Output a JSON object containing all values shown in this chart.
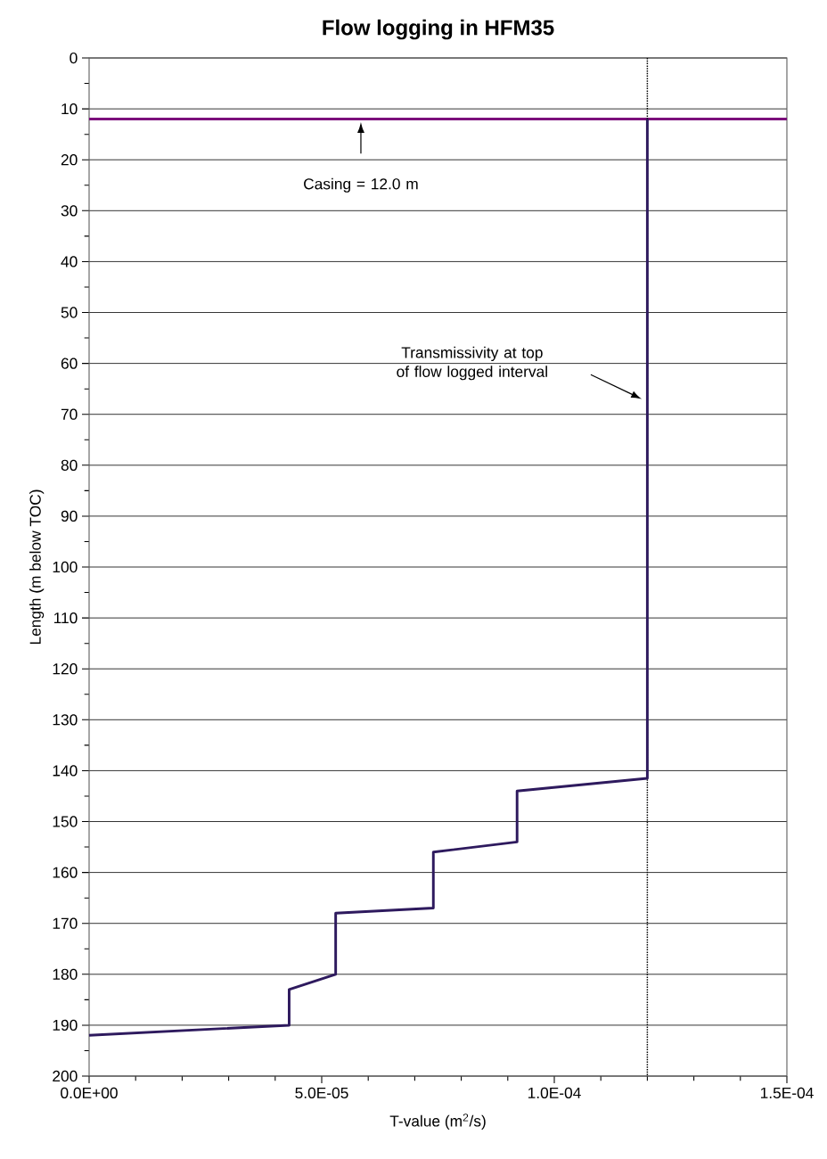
{
  "chart_data": {
    "type": "line",
    "title": "Flow logging in HFM35",
    "xlabel": "T-value (m$^{2}$/s)",
    "ylabel": "Length (m below TOC)",
    "xlim": [
      0,
      0.00015
    ],
    "xticks": [
      {
        "value": 0,
        "label": "0.0E+00"
      },
      {
        "value": 1e-05,
        "label": null
      },
      {
        "value": 2e-05,
        "label": null
      },
      {
        "value": 3e-05,
        "label": null
      },
      {
        "value": 4e-05,
        "label": null
      },
      {
        "value": 5e-05,
        "label": "5.0E-05"
      },
      {
        "value": 6e-05,
        "label": null
      },
      {
        "value": 7e-05,
        "label": null
      },
      {
        "value": 8e-05,
        "label": null
      },
      {
        "value": 9e-05,
        "label": null
      },
      {
        "value": 0.0001,
        "label": "1.0E-04"
      },
      {
        "value": 0.00011,
        "label": null
      },
      {
        "value": 0.00012,
        "label": null
      },
      {
        "value": 0.00013,
        "label": null
      },
      {
        "value": 0.00014,
        "label": null
      },
      {
        "value": 0.00015,
        "label": "1.5E-04"
      }
    ],
    "ylim": [
      200,
      0
    ],
    "yticks": [
      0,
      {
        "value": 5,
        "label": null
      },
      10,
      {
        "value": 15,
        "label": null
      },
      20,
      {
        "value": 25,
        "label": null
      },
      30,
      {
        "value": 35,
        "label": null
      },
      40,
      {
        "value": 45,
        "label": null
      },
      50,
      {
        "value": 55,
        "label": null
      },
      60,
      {
        "value": 65,
        "label": null
      },
      70,
      {
        "value": 75,
        "label": null
      },
      80,
      {
        "value": 85,
        "label": null
      },
      90,
      {
        "value": 95,
        "label": null
      },
      100,
      {
        "value": 105,
        "label": null
      },
      110,
      {
        "value": 115,
        "label": null
      },
      120,
      {
        "value": 125,
        "label": null
      },
      130,
      {
        "value": 135,
        "label": null
      },
      140,
      {
        "value": 145,
        "label": null
      },
      150,
      {
        "value": 155,
        "label": null
      },
      160,
      {
        "value": 165,
        "label": null
      },
      170,
      {
        "value": 175,
        "label": null
      },
      180,
      {
        "value": 185,
        "label": null
      },
      190,
      {
        "value": 195,
        "label": null
      },
      200
    ],
    "grid": "y",
    "series": [
      {
        "color": "#2e1a5e",
        "x": [
          0.00012,
          0.00012,
          9.2e-05,
          9.2e-05,
          7.4e-05,
          7.4e-05,
          5.3e-05,
          5.3e-05,
          4.3e-05,
          4.3e-05,
          0
        ],
        "values": [
          12,
          141.5,
          144,
          154,
          156,
          167,
          168,
          180,
          183,
          190,
          192
        ]
      }
    ],
    "ref_lines": [
      {
        "axis": "y",
        "value": 12,
        "color": "#7b0d7b",
        "line_style": "solid"
      },
      {
        "axis": "x",
        "value": 0.00012,
        "color": "#000000",
        "line_style": "dotted"
      }
    ],
    "annotations": [
      "Casing = 12.0 m",
      "Transmissivity at top of flow logged interval"
    ]
  }
}
